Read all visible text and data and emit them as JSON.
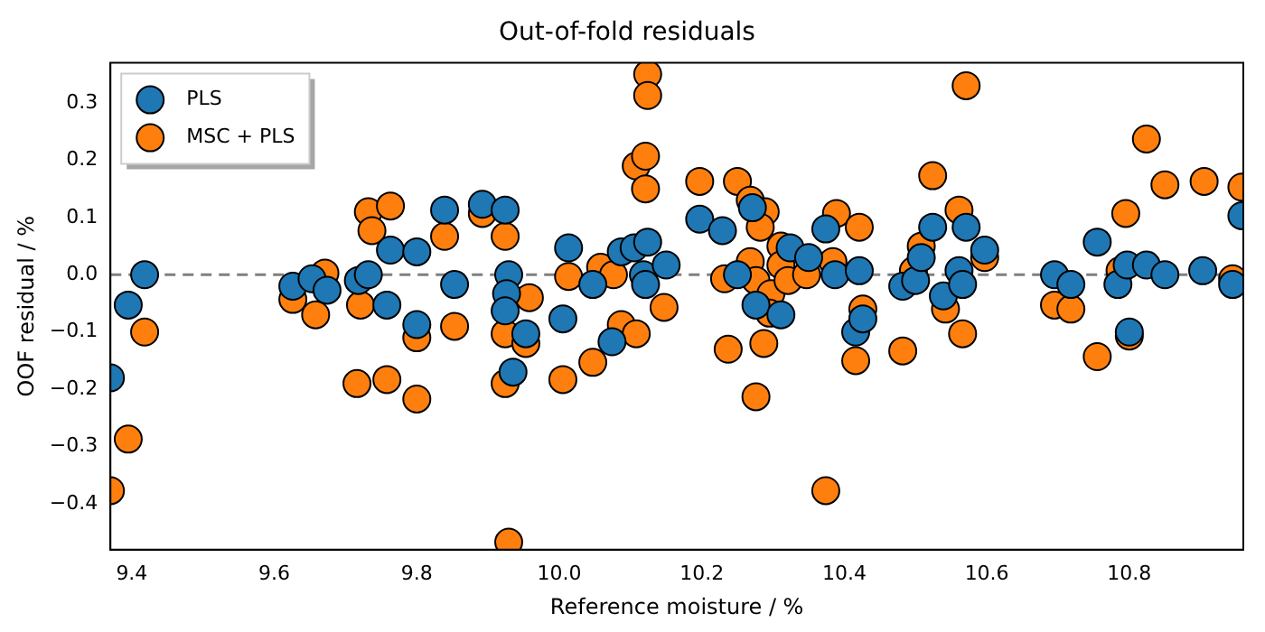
{
  "chart_data": {
    "type": "scatter",
    "title": "Out-of-fold residuals",
    "xlabel": "Reference moisture / %",
    "ylabel": "OOF residual / %",
    "xlim": [
      9.37,
      10.96
    ],
    "ylim": [
      -0.48,
      0.37
    ],
    "xticks": [
      9.4,
      9.6,
      9.8,
      {
        "value": 10.0,
        "label": "10.0"
      },
      10.2,
      10.4,
      10.6,
      10.8
    ],
    "yticks": [
      {
        "value": -0.4,
        "label": "−0.4"
      },
      {
        "value": -0.3,
        "label": "−0.3"
      },
      {
        "value": -0.2,
        "label": "−0.2"
      },
      {
        "value": -0.1,
        "label": "−0.1"
      },
      {
        "value": 0.0,
        "label": "0.0"
      },
      0.1,
      0.2,
      0.3
    ],
    "grid": false,
    "legend": "top left",
    "marker": "circle",
    "ref_lines": [
      {
        "axis": "y",
        "value": 0,
        "color": "#808080",
        "line_style": "dashed"
      }
    ],
    "series": [
      {
        "name": "PLS",
        "color": "#1f77b4",
        "x": [
          9.37,
          9.395,
          9.418,
          9.626,
          9.653,
          9.674,
          9.718,
          9.732,
          9.758,
          9.763,
          9.8,
          9.8,
          9.839,
          9.853,
          9.892,
          9.924,
          9.929,
          9.926,
          9.924,
          9.935,
          9.953,
          10.013,
          10.005,
          10.047,
          10.074,
          10.087,
          10.105,
          10.124,
          10.118,
          10.121,
          10.15,
          10.197,
          10.229,
          10.25,
          10.276,
          10.311,
          10.324,
          10.35,
          10.374,
          10.387,
          10.421,
          10.416,
          10.426,
          10.271,
          10.482,
          10.5,
          10.508,
          10.524,
          10.539,
          10.561,
          10.566,
          10.571,
          10.597,
          10.695,
          10.718,
          10.755,
          10.784,
          10.797,
          10.8,
          10.824,
          10.85,
          10.903,
          10.945,
          10.958
        ],
        "values": [
          -0.18,
          -0.053,
          0.0,
          -0.02,
          -0.007,
          -0.027,
          -0.01,
          0.0,
          -0.053,
          0.043,
          0.04,
          -0.087,
          0.113,
          -0.017,
          0.123,
          0.113,
          0.0,
          -0.033,
          -0.063,
          -0.17,
          -0.103,
          0.047,
          -0.077,
          -0.017,
          -0.117,
          0.04,
          0.047,
          0.057,
          0.0,
          -0.017,
          0.017,
          0.097,
          0.077,
          0.0,
          -0.053,
          -0.07,
          0.047,
          0.03,
          0.08,
          0.0,
          0.007,
          -0.1,
          -0.077,
          0.117,
          -0.02,
          -0.01,
          0.03,
          0.083,
          -0.037,
          0.007,
          -0.017,
          0.083,
          0.043,
          0.0,
          -0.017,
          0.057,
          -0.017,
          0.017,
          -0.1,
          0.017,
          0.0,
          0.007,
          -0.017,
          0.103
        ]
      },
      {
        "name": "MSC + PLS",
        "color": "#ff7f0e",
        "x": [
          9.37,
          9.395,
          9.418,
          9.626,
          9.658,
          9.671,
          9.721,
          9.716,
          9.758,
          9.8,
          9.8,
          9.732,
          9.737,
          9.763,
          9.839,
          9.853,
          9.892,
          9.924,
          9.924,
          9.924,
          9.929,
          9.953,
          9.958,
          10.013,
          10.005,
          10.047,
          10.058,
          10.076,
          10.087,
          10.108,
          10.108,
          10.121,
          10.121,
          10.124,
          10.124,
          10.147,
          10.197,
          10.232,
          10.237,
          10.25,
          10.268,
          10.289,
          10.282,
          10.276,
          10.287,
          10.268,
          10.276,
          10.297,
          10.295,
          10.311,
          10.311,
          10.321,
          10.347,
          10.384,
          10.389,
          10.421,
          10.374,
          10.426,
          10.416,
          10.482,
          10.497,
          10.508,
          10.524,
          10.542,
          10.561,
          10.566,
          10.571,
          10.597,
          10.695,
          10.718,
          10.755,
          10.787,
          10.795,
          10.8,
          10.824,
          10.85,
          10.905,
          10.958,
          10.945
        ],
        "values": [
          -0.377,
          -0.287,
          -0.1,
          -0.043,
          -0.07,
          0.003,
          -0.053,
          -0.19,
          -0.183,
          -0.217,
          -0.11,
          0.11,
          0.077,
          0.12,
          0.067,
          -0.09,
          0.107,
          0.067,
          -0.103,
          -0.19,
          -0.467,
          -0.12,
          -0.04,
          -0.003,
          -0.183,
          -0.153,
          0.013,
          0.0,
          -0.087,
          -0.103,
          0.19,
          0.207,
          0.15,
          0.35,
          0.313,
          -0.057,
          0.163,
          -0.007,
          -0.13,
          0.163,
          0.13,
          0.11,
          0.083,
          -0.213,
          -0.12,
          0.023,
          -0.01,
          -0.033,
          -0.067,
          0.05,
          0.017,
          -0.01,
          0.0,
          0.023,
          0.107,
          0.083,
          -0.377,
          -0.06,
          -0.15,
          -0.133,
          0.007,
          0.05,
          0.173,
          -0.06,
          0.113,
          -0.103,
          0.33,
          0.03,
          -0.053,
          -0.06,
          -0.143,
          0.007,
          0.107,
          -0.107,
          0.237,
          0.157,
          0.163,
          0.153,
          -0.007
        ]
      }
    ]
  }
}
